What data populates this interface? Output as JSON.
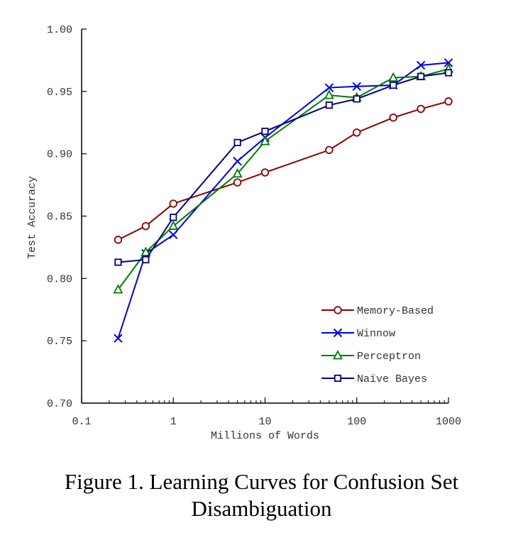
{
  "chart_data": {
    "type": "line",
    "xscale": "log",
    "x": [
      0.25,
      0.5,
      1,
      5,
      10,
      50,
      100,
      250,
      500,
      1000
    ],
    "xlim": [
      0.1,
      1000
    ],
    "ylim": [
      0.7,
      1.0
    ],
    "xticks": [
      "0.1",
      "1",
      "10",
      "100",
      "1000"
    ],
    "yticks": [
      "0.70",
      "0.75",
      "0.80",
      "0.85",
      "0.90",
      "0.95",
      "1.00"
    ],
    "xlabel": "Millions of Words",
    "ylabel": "Test Accuracy",
    "legend_position": "lower-right",
    "series": [
      {
        "name": "Memory-Based",
        "color": "#8b0000",
        "marker": "circle",
        "values": [
          0.831,
          0.842,
          0.86,
          0.877,
          0.885,
          0.903,
          0.917,
          0.929,
          0.936,
          0.942
        ]
      },
      {
        "name": "Winnow",
        "color": "#0000dd",
        "marker": "x",
        "values": [
          0.752,
          0.82,
          0.835,
          0.894,
          0.913,
          0.953,
          0.954,
          0.955,
          0.971,
          0.973
        ]
      },
      {
        "name": "Perceptron",
        "color": "#007a00",
        "marker": "triangle",
        "values": [
          0.791,
          0.821,
          0.842,
          0.884,
          0.91,
          0.947,
          0.945,
          0.961,
          0.962,
          0.968
        ]
      },
      {
        "name": "Naïve Bayes",
        "color": "#000080",
        "marker": "square",
        "values": [
          0.813,
          0.815,
          0.849,
          0.909,
          0.918,
          0.939,
          0.944,
          0.955,
          0.962,
          0.965
        ]
      }
    ]
  },
  "caption": {
    "line1": "Figure 1. Learning Curves for Confusion Set",
    "line2": "Disambiguation"
  }
}
